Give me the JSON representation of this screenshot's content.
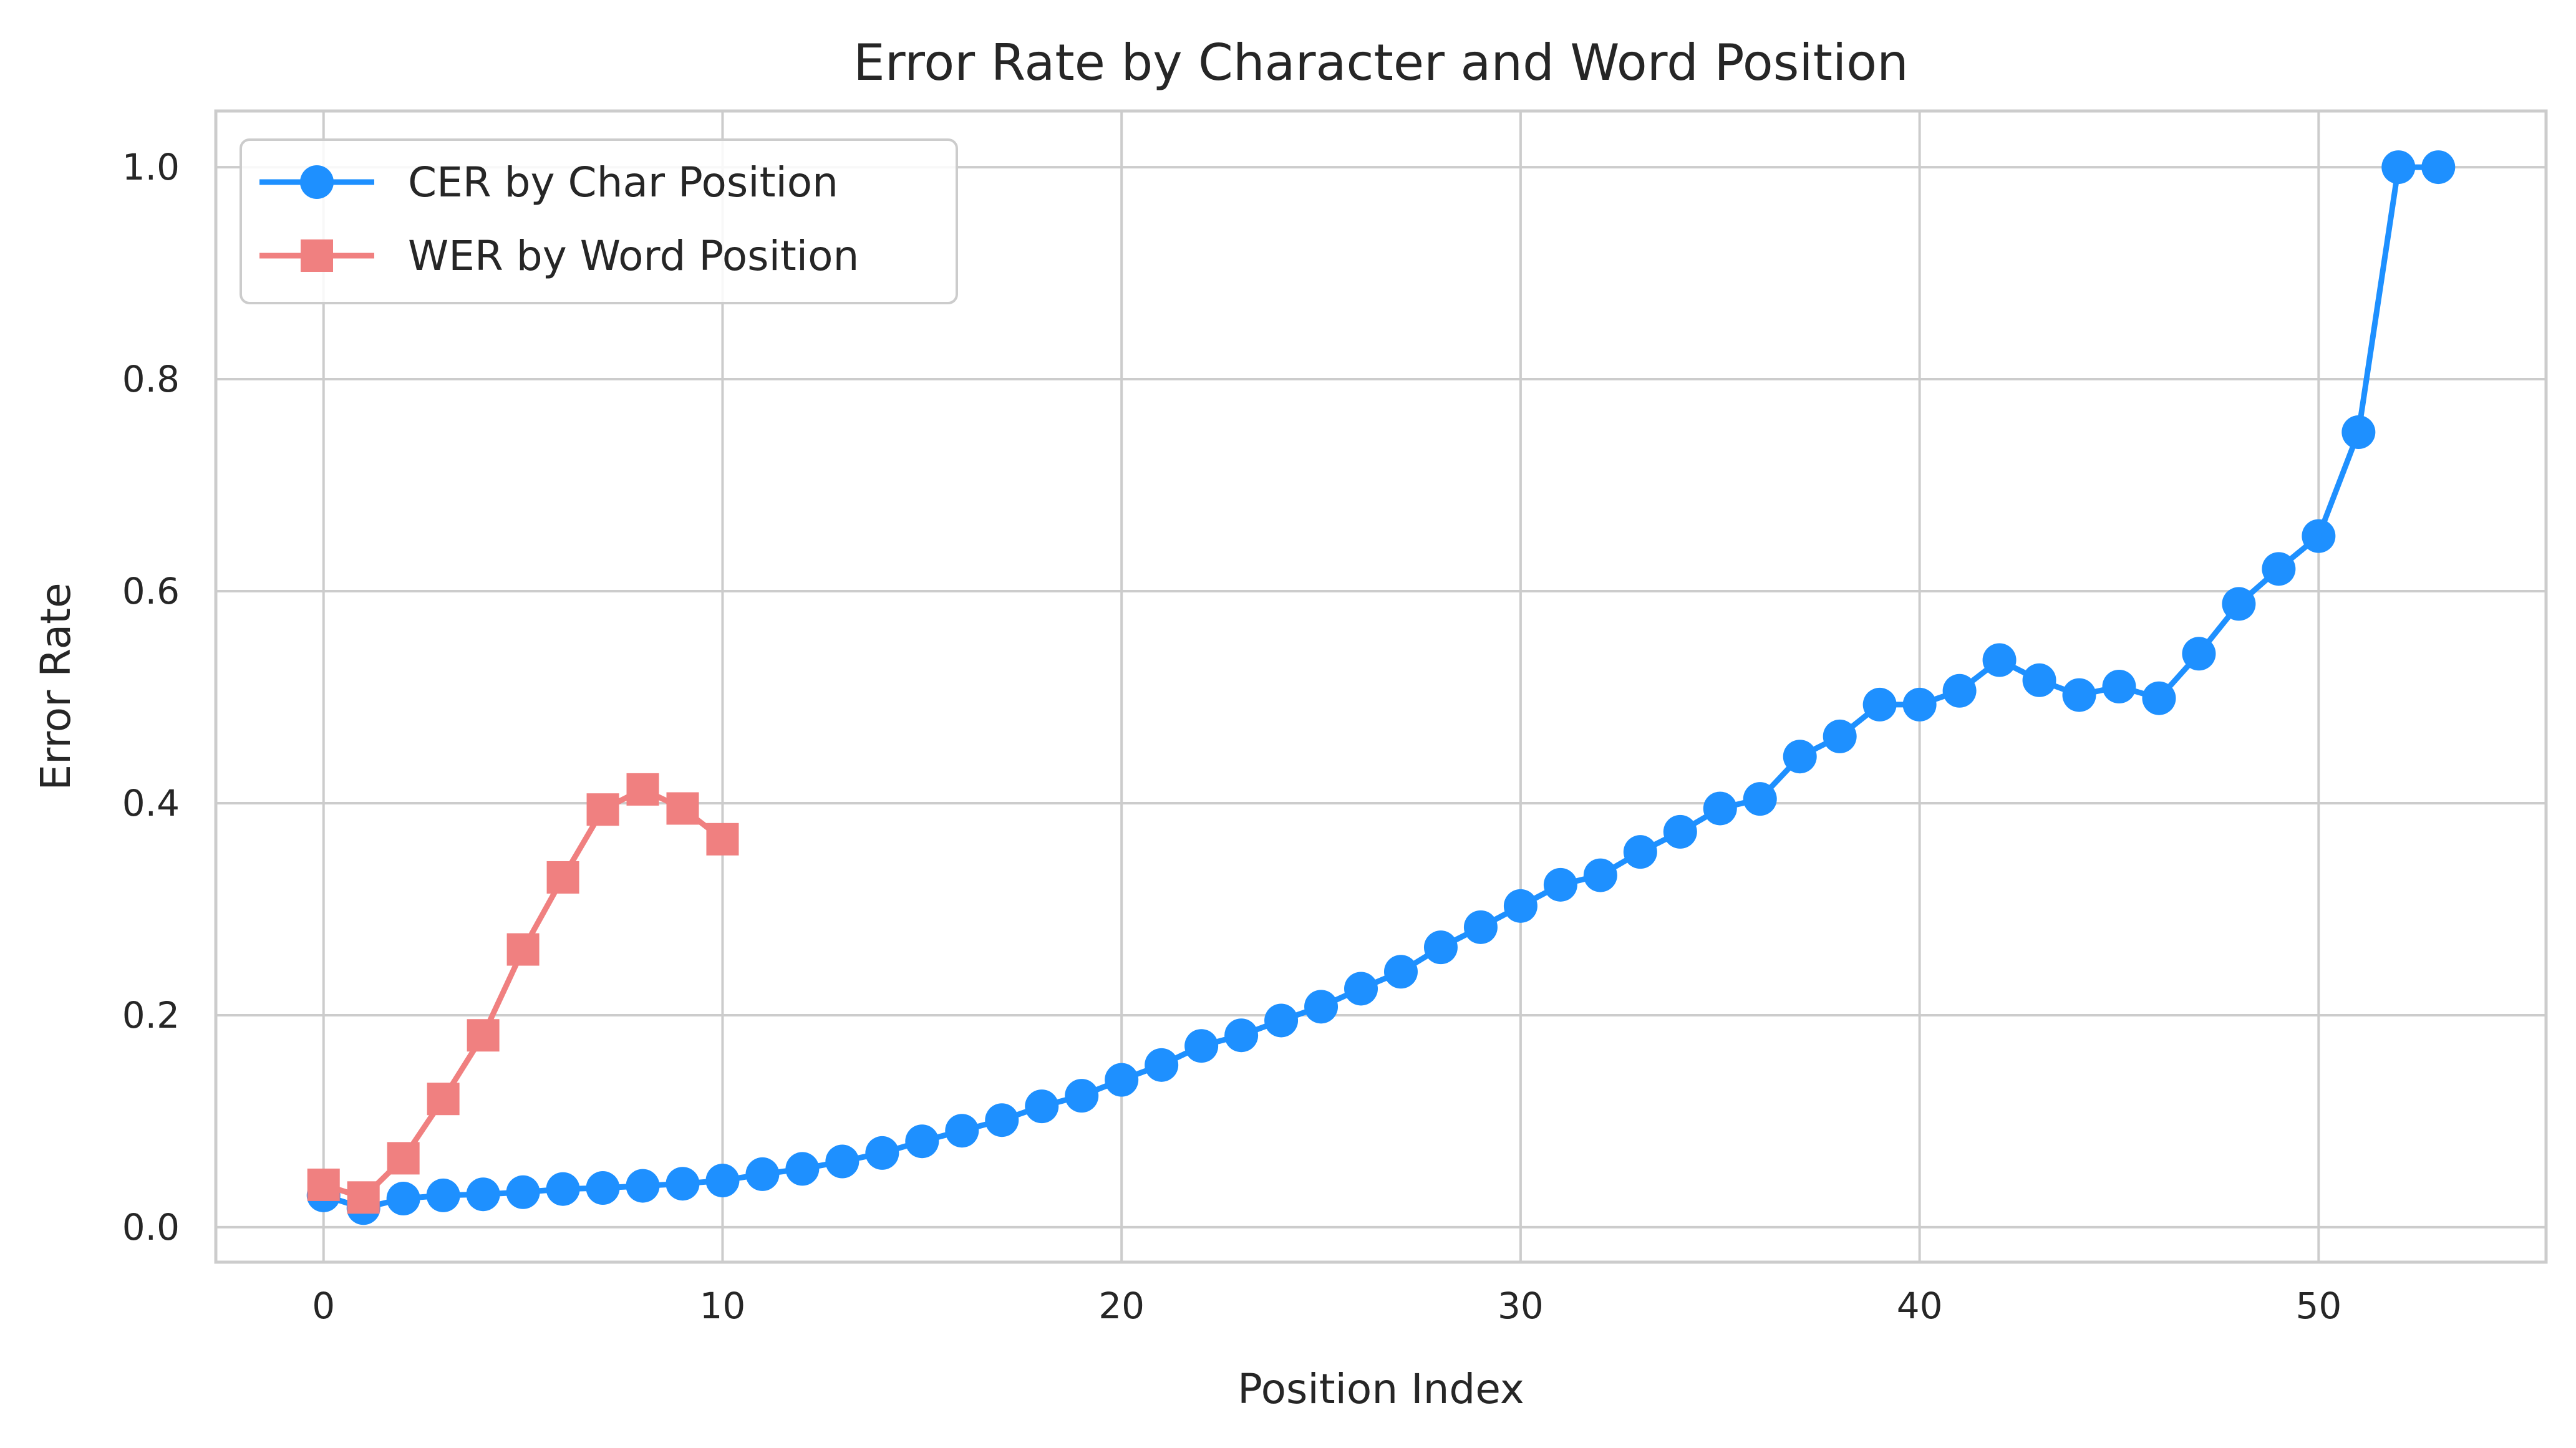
{
  "chart_data": {
    "type": "line",
    "title": "Error Rate by Character and Word Position",
    "xlabel": "Position Index",
    "ylabel": "Error Rate",
    "xlim": [
      -2.7,
      55.7
    ],
    "ylim": [
      -0.033,
      1.053
    ],
    "xticks": [
      0,
      10,
      20,
      30,
      40,
      50
    ],
    "yticks": [
      0.0,
      0.2,
      0.4,
      0.6,
      0.8,
      1.0
    ],
    "xtick_labels": [
      "0",
      "10",
      "20",
      "30",
      "40",
      "50"
    ],
    "ytick_labels": [
      "0.0",
      "0.2",
      "0.4",
      "0.6",
      "0.8",
      "1.0"
    ],
    "grid": true,
    "legend_position": "top-left",
    "series": [
      {
        "name": "CER by Char Position",
        "color": "#1e90ff",
        "marker": "circle",
        "x": [
          0,
          1,
          2,
          3,
          4,
          5,
          6,
          7,
          8,
          9,
          10,
          11,
          12,
          13,
          14,
          15,
          16,
          17,
          18,
          19,
          20,
          21,
          22,
          23,
          24,
          25,
          26,
          27,
          28,
          29,
          30,
          31,
          32,
          33,
          34,
          35,
          36,
          37,
          38,
          39,
          40,
          41,
          42,
          43,
          44,
          45,
          46,
          47,
          48,
          49,
          50,
          51,
          52,
          53
        ],
        "y": [
          0.03,
          0.018,
          0.027,
          0.03,
          0.031,
          0.033,
          0.036,
          0.037,
          0.039,
          0.041,
          0.044,
          0.05,
          0.055,
          0.062,
          0.07,
          0.081,
          0.091,
          0.101,
          0.114,
          0.124,
          0.139,
          0.153,
          0.171,
          0.181,
          0.195,
          0.208,
          0.225,
          0.241,
          0.264,
          0.283,
          0.303,
          0.323,
          0.332,
          0.354,
          0.373,
          0.395,
          0.404,
          0.444,
          0.463,
          0.493,
          0.493,
          0.506,
          0.535,
          0.516,
          0.502,
          0.51,
          0.499,
          0.541,
          0.588,
          0.621,
          0.652,
          0.75,
          1.0,
          1.0
        ]
      },
      {
        "name": "WER by Word Position",
        "color": "#f08080",
        "marker": "square",
        "x": [
          0,
          1,
          2,
          3,
          4,
          5,
          6,
          7,
          8,
          9,
          10
        ],
        "y": [
          0.04,
          0.028,
          0.065,
          0.121,
          0.181,
          0.262,
          0.33,
          0.394,
          0.413,
          0.395,
          0.366
        ]
      }
    ]
  }
}
